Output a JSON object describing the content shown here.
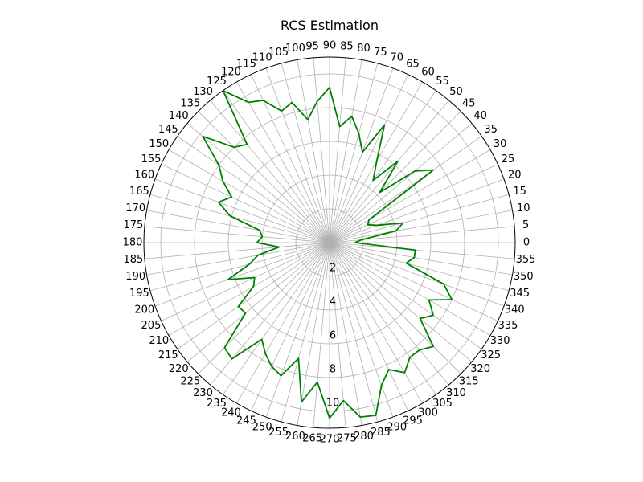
{
  "chart_data": {
    "type": "line",
    "subtype": "polar",
    "title": "RCS Estimation",
    "xlabel": "",
    "ylabel": "",
    "grid": true,
    "legend": false,
    "theta_unit": "degrees",
    "theta_ticks": [
      "0",
      "5",
      "10",
      "15",
      "20",
      "25",
      "30",
      "35",
      "40",
      "45",
      "50",
      "55",
      "60",
      "65",
      "70",
      "75",
      "80",
      "85",
      "90",
      "95",
      "100",
      "105",
      "110",
      "115",
      "120",
      "125",
      "130",
      "135",
      "140",
      "145",
      "150",
      "155",
      "160",
      "165",
      "170",
      "175",
      "180",
      "185",
      "190",
      "195",
      "200",
      "205",
      "210",
      "215",
      "220",
      "225",
      "230",
      "235",
      "240",
      "245",
      "250",
      "255",
      "260",
      "265",
      "270",
      "275",
      "280",
      "285",
      "290",
      "295",
      "300",
      "305",
      "310",
      "315",
      "320",
      "325",
      "330",
      "335",
      "340",
      "345",
      "350",
      "355"
    ],
    "r_ticks": [
      "2",
      "4",
      "6",
      "8",
      "10"
    ],
    "r_tick_values": [
      2,
      4,
      6,
      8,
      10
    ],
    "r_tick_label_angle": 270,
    "rlim": [
      0,
      11
    ],
    "series": [
      {
        "color": "#008000",
        "theta": [
          0,
          5,
          10,
          15,
          20,
          25,
          30,
          35,
          40,
          45,
          50,
          55,
          60,
          65,
          70,
          75,
          80,
          85,
          90,
          95,
          100,
          105,
          110,
          115,
          120,
          125,
          130,
          135,
          140,
          145,
          150,
          155,
          160,
          165,
          170,
          175,
          180,
          185,
          190,
          195,
          200,
          205,
          210,
          215,
          220,
          225,
          230,
          235,
          240,
          245,
          250,
          255,
          260,
          265,
          270,
          275,
          280,
          285,
          290,
          295,
          300,
          305,
          310,
          315,
          320,
          325,
          330,
          335,
          340,
          345,
          350,
          355
        ],
        "r": [
          1.5,
          1.9,
          4.0,
          4.5,
          3.0,
          2.5,
          2.7,
          7.5,
          6.6,
          4.2,
          6.3,
          4.5,
          5.6,
          7.7,
          5.7,
          6.7,
          7.6,
          6.9,
          9.2,
          8.4,
          7.4,
          8.6,
          8.3,
          9.3,
          9.6,
          11.0,
          7.6,
          8.0,
          9.8,
          8.0,
          7.3,
          6.4,
          7.0,
          6.1,
          4.2,
          4.0,
          4.3,
          3.0,
          4.3,
          4.9,
          6.4,
          4.9,
          5.2,
          6.6,
          6.5,
          8.8,
          9.0,
          7.0,
          7.6,
          8.1,
          8.4,
          7.1,
          9.6,
          8.3,
          10.4,
          9.4,
          10.5,
          10.6,
          9.0,
          8.3,
          8.9,
          8.3,
          8.3,
          8.7,
          7.0,
          7.5,
          6.8,
          8.0,
          7.2,
          4.7,
          5.1,
          5.1
        ]
      }
    ]
  }
}
